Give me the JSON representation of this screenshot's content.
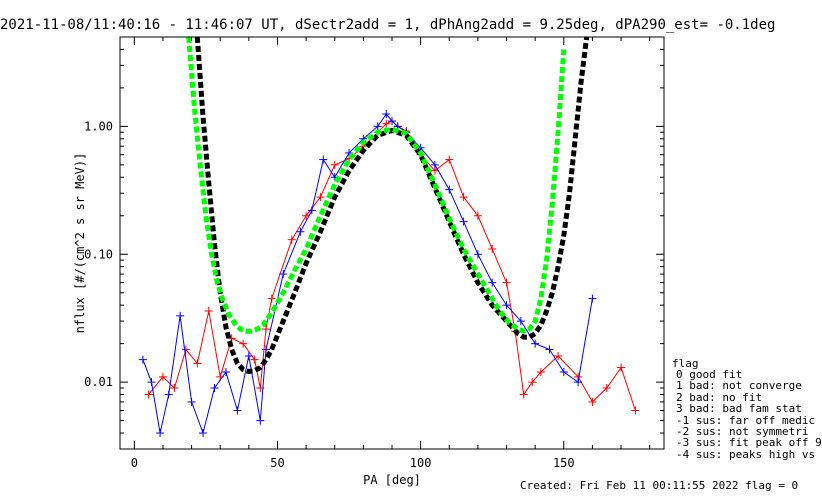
{
  "chart_data": {
    "type": "line",
    "title": "2021-11-08/11:40:16 - 11:46:07 UT, dSectr2add = 1, dPhAng2add = 9.25deg, dPA290_est=  -0.1deg",
    "xlabel": "PA [deg]",
    "ylabel": "nflux [#/(cm^2 s sr MeV)]",
    "xlim": [
      -5,
      185
    ],
    "ylim": [
      0.003,
      5.0
    ],
    "yscale": "log",
    "x_ticks": [
      0,
      50,
      100,
      150
    ],
    "y_ticks": [
      0.01,
      0.1,
      1.0
    ],
    "y_tick_labels": [
      "0.01",
      "0.10",
      "1.00"
    ],
    "series": [
      {
        "color": "#ff0000",
        "marker": "+",
        "x": [
          5,
          10,
          14,
          18,
          22,
          26,
          30,
          34,
          38,
          42,
          44,
          46,
          48,
          55,
          60,
          65,
          70,
          75,
          80,
          85,
          88,
          90,
          92,
          95,
          100,
          105,
          110,
          115,
          120,
          125,
          130,
          133,
          136,
          139,
          142,
          148,
          155,
          160,
          165,
          170,
          175
        ],
        "y": [
          0.008,
          0.011,
          0.009,
          0.018,
          0.014,
          0.036,
          0.011,
          0.022,
          0.02,
          0.015,
          0.009,
          0.026,
          0.045,
          0.13,
          0.2,
          0.28,
          0.5,
          0.56,
          0.7,
          0.9,
          1.05,
          1.1,
          1.0,
          0.92,
          0.6,
          0.45,
          0.55,
          0.28,
          0.2,
          0.11,
          0.06,
          0.025,
          0.008,
          0.01,
          0.012,
          0.016,
          0.011,
          0.007,
          0.009,
          0.013,
          0.006
        ]
      },
      {
        "color": "#0000ff",
        "marker": "+",
        "x": [
          3,
          6,
          9,
          12,
          16,
          20,
          24,
          28,
          32,
          36,
          40,
          44,
          46,
          52,
          58,
          62,
          66,
          70,
          75,
          80,
          85,
          88,
          90,
          92,
          95,
          100,
          105,
          110,
          115,
          120,
          125,
          130,
          135,
          140,
          145,
          150,
          155,
          160
        ],
        "y": [
          0.015,
          0.01,
          0.004,
          0.008,
          0.033,
          0.007,
          0.004,
          0.009,
          0.012,
          0.006,
          0.016,
          0.005,
          0.018,
          0.07,
          0.15,
          0.22,
          0.55,
          0.4,
          0.62,
          0.8,
          1.0,
          1.25,
          1.1,
          1.0,
          0.9,
          0.68,
          0.5,
          0.32,
          0.18,
          0.1,
          0.06,
          0.04,
          0.03,
          0.02,
          0.018,
          0.012,
          0.01,
          0.045
        ]
      },
      {
        "color": "#000000",
        "style": "dashed",
        "x": [
          22,
          24,
          26,
          28,
          30,
          32,
          34,
          36,
          38,
          40,
          42,
          44,
          46,
          48,
          52,
          56,
          60,
          65,
          70,
          75,
          80,
          85,
          90,
          95,
          100,
          105,
          110,
          115,
          120,
          125,
          130,
          134,
          136,
          138,
          140,
          142,
          144,
          146,
          148,
          150,
          152,
          154,
          156,
          158
        ],
        "y": [
          5.0,
          1.2,
          0.36,
          0.12,
          0.05,
          0.027,
          0.018,
          0.014,
          0.0125,
          0.0121,
          0.0123,
          0.013,
          0.015,
          0.018,
          0.03,
          0.05,
          0.085,
          0.15,
          0.28,
          0.45,
          0.65,
          0.85,
          0.93,
          0.85,
          0.6,
          0.33,
          0.18,
          0.1,
          0.06,
          0.04,
          0.03,
          0.024,
          0.0225,
          0.0225,
          0.024,
          0.028,
          0.036,
          0.05,
          0.08,
          0.14,
          0.3,
          0.8,
          2.2,
          5.0
        ]
      },
      {
        "color": "#00ff00",
        "style": "dashed",
        "x": [
          19,
          21,
          23,
          25,
          27,
          29,
          31,
          33,
          35,
          37,
          39,
          41,
          43,
          45,
          48,
          52,
          56,
          60,
          65,
          70,
          75,
          80,
          85,
          90,
          95,
          100,
          105,
          110,
          115,
          120,
          125,
          128,
          131,
          134,
          136,
          138,
          140,
          142,
          144,
          146,
          148,
          150
        ],
        "y": [
          5.0,
          1.4,
          0.5,
          0.2,
          0.1,
          0.06,
          0.043,
          0.034,
          0.029,
          0.026,
          0.025,
          0.025,
          0.026,
          0.028,
          0.035,
          0.05,
          0.075,
          0.11,
          0.2,
          0.35,
          0.55,
          0.75,
          0.9,
          0.95,
          0.88,
          0.62,
          0.35,
          0.19,
          0.11,
          0.07,
          0.045,
          0.035,
          0.029,
          0.026,
          0.025,
          0.026,
          0.03,
          0.045,
          0.09,
          0.25,
          0.9,
          4.0
        ]
      }
    ]
  },
  "legend": {
    "title": "flag",
    "items": [
      " 0 good fit",
      " 1 bad: not converge",
      " 2 bad: no fit",
      " 3 bad: bad fam stat",
      "-1 sus: far off medic",
      "-2 sus: not symmetri",
      "-3 sus: fit peak off 9",
      "-4 sus: peaks high vs"
    ]
  },
  "footer": {
    "created": "Created: Fri Feb 11 00:11:55 2022",
    "flag": "flag = 0"
  }
}
